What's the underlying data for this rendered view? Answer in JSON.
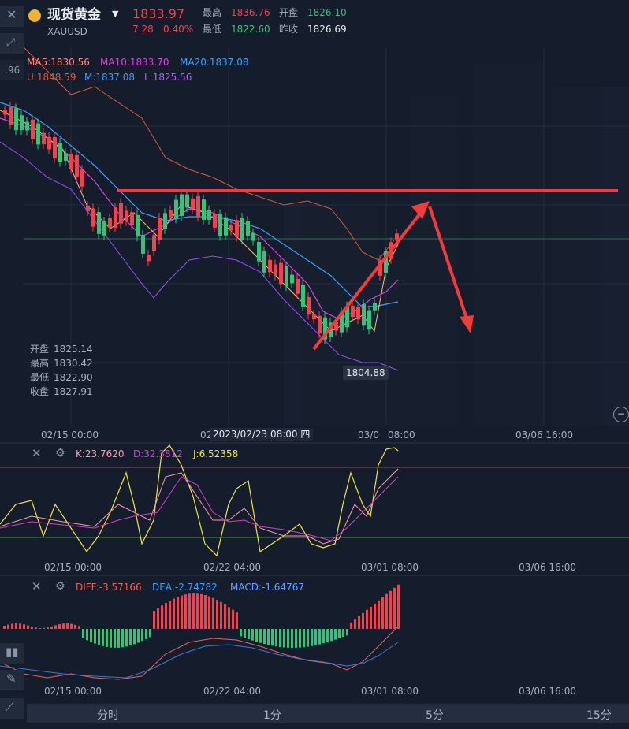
{
  "header": {
    "symbol_name": "现货黄金",
    "symbol_code": "XAUUSD",
    "last_price": "1833.97",
    "change": "7.28",
    "change_pct": "0.40%",
    "high_label": "最高",
    "high_value": "1836.76",
    "open_label": "开盘",
    "open_value": "1826.10",
    "low_label": "最低",
    "low_value": "1822.60",
    "prev_close_label": "昨收",
    "prev_close_value": "1826.69"
  },
  "main_chart": {
    "ma5": "MA5:1830.56",
    "ma10": "MA10:1833.70",
    "ma20": "MA20:1837.08",
    "boll_u": "U:1848.59",
    "boll_m": "M:1837.08",
    "boll_l": "L:1825.56",
    "axis_fragment": ".96",
    "ohlc": [
      {
        "label": "开盘",
        "value": "1825.14"
      },
      {
        "label": "最高",
        "value": "1830.42"
      },
      {
        "label": "最低",
        "value": "1822.90"
      },
      {
        "label": "收盘",
        "value": "1827.91"
      }
    ],
    "low_marker": "1804.88",
    "cursor_time": "2023/02/23 08:00 四",
    "x_labels": [
      "02/15 00:00",
      "02",
      "03/0",
      "08:00",
      "03/06 16:00"
    ]
  },
  "kdj": {
    "k": "K:23.7620",
    "d": "D:32.3812",
    "j": "J:6.52358",
    "x_labels": [
      "02/15 00:00",
      "02/22 04:00",
      "03/01 08:00",
      "03/06 16:00"
    ]
  },
  "macd": {
    "diff": "DIFF:-3.57166",
    "dea": "DEA:-2.74782",
    "macd": "MACD:-1.64767",
    "x_labels": [
      "02/15 00:00",
      "02/22 04:00",
      "03/01 08:00",
      "03/06 16:00"
    ]
  },
  "tabs": [
    "分时",
    "1分",
    "5分",
    "15分"
  ],
  "icons": [
    "close-icon",
    "settings-icon",
    "candlestick-icon",
    "pencil-icon",
    "line-tool-icon",
    "crosshair-icon",
    "zoom-out-icon",
    "dropdown-icon",
    "coin-icon"
  ],
  "colors": {
    "up": "#f0434d",
    "down": "#37c27a",
    "ma5": "#ff8a7a",
    "ma10": "#e040e0",
    "ma20": "#3aa0ff",
    "k": "#ff9aa8",
    "d": "#d040d0",
    "j": "#f2e640",
    "annotation": "#f43a3a"
  }
}
